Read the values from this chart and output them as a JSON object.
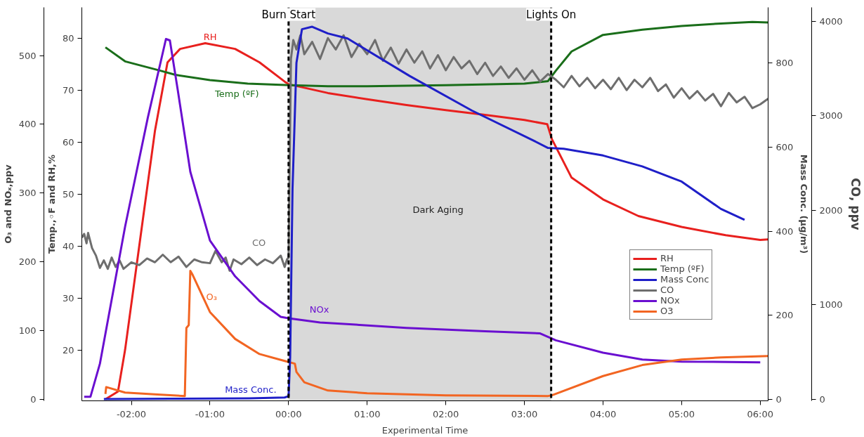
{
  "chart_data": [
    {
      "type": "line",
      "xlabel": "Experimental Time",
      "ylabel": "O₃ and NOₓ,ppv",
      "y2label": "CO, ppv",
      "y3label": "Temp.,◦F and RH,%",
      "xlim": [
        -2.63,
        6.1
      ],
      "xticks": [
        {
          "value": -2,
          "label": "-02:00"
        },
        {
          "value": -1,
          "label": "-01:00"
        },
        {
          "value": 0,
          "label": "00:00"
        },
        {
          "value": 1,
          "label": "01:00"
        },
        {
          "value": 2,
          "label": "02:00"
        },
        {
          "value": 3,
          "label": "03:00"
        },
        {
          "value": 4,
          "label": "04:00"
        },
        {
          "value": 5,
          "label": "05:00"
        },
        {
          "value": 6,
          "label": "06:00"
        }
      ],
      "ylim": [
        -2,
        570
      ],
      "yticks": [
        0,
        100,
        200,
        300,
        400,
        500
      ],
      "y2lim": [
        -15,
        4145
      ],
      "y2ticks": [
        0,
        1000,
        2000,
        3000,
        4000
      ],
      "y3lim": [
        10.2,
        86
      ],
      "y3ticks": [
        20,
        30,
        40,
        50,
        60,
        70,
        80
      ],
      "grid": false,
      "legend": "bottom right",
      "line_style": "solid",
      "series": [
        {
          "name": "RH",
          "color": "#e8201e",
          "axis": "y3",
          "x": [
            -2.33,
            -2.17,
            -2.08,
            -1.89,
            -1.7,
            -1.54,
            -1.38,
            -1.06,
            -0.68,
            -0.37,
            -0.05,
            0.0,
            0.5,
            1.0,
            1.5,
            2.0,
            2.5,
            3.0,
            3.29,
            3.35,
            3.6,
            4.0,
            4.45,
            5.0,
            5.56,
            6.0,
            6.1
          ],
          "values": [
            10.5,
            12,
            20,
            41.1,
            62.2,
            75.4,
            78,
            79.1,
            78,
            75.4,
            71.7,
            71.2,
            69.5,
            68.3,
            67.2,
            66.2,
            65.3,
            64.3,
            63.5,
            60.6,
            53.2,
            49,
            45.8,
            43.7,
            42.1,
            41.2,
            41.3
          ]
        },
        {
          "name": "Temp (ºF)",
          "color": "#1a6e1a",
          "axis": "y3",
          "x": [
            -2.33,
            -2.08,
            -1.63,
            -1.44,
            -1.0,
            -0.52,
            0.02,
            0.5,
            1.0,
            2.0,
            3.0,
            3.3,
            3.4,
            3.6,
            4.0,
            4.5,
            5.0,
            5.5,
            5.9,
            6.1
          ],
          "values": [
            78.3,
            75.6,
            73.8,
            73,
            72,
            71.3,
            71,
            70.8,
            70.8,
            71,
            71.3,
            71.8,
            73.8,
            77.5,
            80.7,
            81.7,
            82.4,
            82.9,
            83.2,
            83.1
          ]
        },
        {
          "name": "CO",
          "color": "#6e6e6e",
          "axis": "y2",
          "x": [
            -2.63,
            -2.6,
            -2.57,
            -2.55,
            -2.5,
            -2.45,
            -2.4,
            -2.35,
            -2.3,
            -2.25,
            -2.2,
            -2.15,
            -2.1,
            -2.0,
            -1.9,
            -1.8,
            -1.7,
            -1.6,
            -1.5,
            -1.4,
            -1.3,
            -1.2,
            -1.1,
            -1.0,
            -0.93,
            -0.85,
            -0.8,
            -0.75,
            -0.7,
            -0.6,
            -0.5,
            -0.4,
            -0.3,
            -0.2,
            -0.1,
            -0.05,
            -0.02,
            0.0,
            0.03,
            0.06,
            0.1,
            0.15,
            0.2,
            0.3,
            0.4,
            0.5,
            0.6,
            0.7,
            0.8,
            0.9,
            1.0,
            1.1,
            1.2,
            1.3,
            1.4,
            1.5,
            1.6,
            1.7,
            1.8,
            1.9,
            2.0,
            2.1,
            2.2,
            2.3,
            2.4,
            2.5,
            2.6,
            2.7,
            2.8,
            2.9,
            3.0,
            3.1,
            3.2,
            3.3,
            3.4,
            3.5,
            3.6,
            3.7,
            3.8,
            3.9,
            4.0,
            4.1,
            4.2,
            4.3,
            4.4,
            4.5,
            4.6,
            4.7,
            4.8,
            4.9,
            5.0,
            5.1,
            5.2,
            5.3,
            5.4,
            5.5,
            5.6,
            5.7,
            5.8,
            5.9,
            6.0,
            6.1
          ],
          "values": [
            1710,
            1750,
            1650,
            1760,
            1600,
            1520,
            1390,
            1470,
            1380,
            1500,
            1400,
            1470,
            1380,
            1450,
            1420,
            1490,
            1450,
            1530,
            1450,
            1510,
            1400,
            1480,
            1450,
            1440,
            1570,
            1450,
            1500,
            1360,
            1480,
            1430,
            1500,
            1420,
            1480,
            1440,
            1520,
            1400,
            1480,
            1500,
            3600,
            3800,
            3700,
            3850,
            3650,
            3780,
            3600,
            3820,
            3700,
            3850,
            3620,
            3760,
            3650,
            3800,
            3580,
            3720,
            3550,
            3700,
            3560,
            3680,
            3500,
            3640,
            3480,
            3620,
            3500,
            3580,
            3440,
            3560,
            3420,
            3520,
            3400,
            3500,
            3380,
            3480,
            3360,
            3440,
            3380,
            3300,
            3420,
            3310,
            3400,
            3290,
            3380,
            3280,
            3400,
            3270,
            3380,
            3300,
            3400,
            3260,
            3330,
            3190,
            3290,
            3180,
            3260,
            3160,
            3230,
            3100,
            3240,
            3140,
            3200,
            3080,
            3120,
            3180
          ]
        },
        {
          "name": "NOx",
          "color": "#6a0fd0",
          "x": [
            -2.6,
            -2.52,
            -2.4,
            -2.08,
            -1.79,
            -1.56,
            -1.51,
            -1.41,
            -1.25,
            -1.0,
            -0.68,
            -0.37,
            -0.1,
            0.0,
            0.4,
            1.5,
            2.5,
            3.2,
            3.4,
            4.0,
            4.5,
            5.0,
            6.0
          ],
          "values": [
            4,
            4,
            52,
            251,
            410,
            524,
            522,
            450,
            331,
            231,
            179,
            143,
            120,
            118,
            112,
            104,
            99,
            96,
            86,
            68,
            58,
            55,
            54
          ]
        },
        {
          "name": "O3",
          "color": "#f26522",
          "x": [
            -2.33,
            -2.32,
            -2.08,
            -1.63,
            -1.32,
            -1.3,
            -1.27,
            -1.25,
            -1.22,
            -1.0,
            -0.68,
            -0.37,
            -0.05,
            0.08,
            0.1,
            0.2,
            0.5,
            1.0,
            2.0,
            3.3,
            3.35,
            4.0,
            4.5,
            5.0,
            5.5,
            6.1
          ],
          "values": [
            8,
            18,
            10,
            7,
            5,
            104,
            108,
            187,
            181,
            127,
            88,
            66,
            56,
            52,
            40,
            25,
            13,
            9,
            6,
            5,
            6,
            34,
            50,
            58,
            61,
            63
          ]
        }
      ],
      "ref_lines": [
        {
          "axis": "x",
          "value": 0,
          "label": "Burn Start",
          "color": "#000000",
          "line_style": "dashed"
        },
        {
          "axis": "x",
          "value": 3.34,
          "label": "Lights On",
          "color": "#000000",
          "line_style": "dashed"
        }
      ],
      "bands": [
        {
          "axis": "x",
          "from": 0,
          "to": 3.34,
          "color": "#d9d9d9"
        }
      ],
      "annotations": [
        "RH",
        "Temp (ºF)",
        "CO",
        "O₃",
        "NOx",
        "Mass Conc.",
        "Dark Aging"
      ]
    },
    {
      "type": "line",
      "ylabel": "Mass Conc. (µg/m³)",
      "xlim": [
        -2.63,
        6.1
      ],
      "ylim": [
        -3,
        932
      ],
      "yticks": [
        0,
        200,
        400,
        600,
        800
      ],
      "tick_labels": "y",
      "series": [
        {
          "name": "Mass Conc",
          "color": "#1f1fc8",
          "x": [
            -2.35,
            -1.5,
            -0.5,
            -0.05,
            0.0,
            0.02,
            0.05,
            0.1,
            0.17,
            0.3,
            0.5,
            0.75,
            1.54,
            2.33,
            3.13,
            3.3,
            3.5,
            4.0,
            4.5,
            5.0,
            5.5,
            5.8
          ],
          "values": [
            1,
            2,
            3,
            5,
            8,
            100,
            500,
            800,
            880,
            886,
            870,
            858,
            769,
            687,
            614,
            598,
            596,
            580,
            554,
            518,
            453,
            427
          ]
        }
      ]
    }
  ]
}
